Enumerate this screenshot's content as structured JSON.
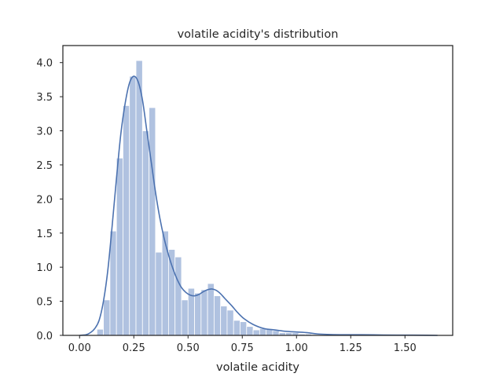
{
  "chart_data": {
    "type": "bar",
    "title": "volatile acidity's distribution",
    "xlabel": "volatile acidity",
    "ylabel": "",
    "xlim": [
      -0.077,
      1.72
    ],
    "ylim": [
      0,
      4.25
    ],
    "xticks": [
      0.0,
      0.25,
      0.5,
      0.75,
      1.0,
      1.25,
      1.5
    ],
    "xtick_labels": [
      "0.00",
      "0.25",
      "0.50",
      "0.75",
      "1.00",
      "1.25",
      "1.50"
    ],
    "yticks": [
      0.0,
      0.5,
      1.0,
      1.5,
      2.0,
      2.5,
      3.0,
      3.5,
      4.0
    ],
    "ytick_labels": [
      "0.0",
      "0.5",
      "1.0",
      "1.5",
      "2.0",
      "2.5",
      "3.0",
      "3.5",
      "4.0"
    ],
    "grid": false,
    "legend": "none",
    "histogram": {
      "bin_width": 0.03,
      "bin_starts": [
        0.08,
        0.11,
        0.14,
        0.17,
        0.2,
        0.23,
        0.26,
        0.29,
        0.32,
        0.35,
        0.38,
        0.41,
        0.44,
        0.47,
        0.5,
        0.53,
        0.56,
        0.59,
        0.62,
        0.65,
        0.68,
        0.71,
        0.74,
        0.77,
        0.8,
        0.83,
        0.86,
        0.89,
        0.92,
        0.95,
        0.98,
        1.01,
        1.04,
        1.07,
        1.1,
        1.13,
        1.16,
        1.19,
        1.22,
        1.25,
        1.28,
        1.31,
        1.34,
        1.37,
        1.4,
        1.43,
        1.46,
        1.49,
        1.52,
        1.55,
        1.58,
        1.61
      ],
      "values": [
        0.09,
        0.52,
        1.53,
        2.6,
        3.37,
        3.8,
        4.03,
        3.0,
        3.34,
        1.22,
        1.53,
        1.26,
        1.15,
        0.52,
        0.69,
        0.62,
        0.67,
        0.76,
        0.58,
        0.43,
        0.37,
        0.22,
        0.2,
        0.13,
        0.08,
        0.1,
        0.09,
        0.07,
        0.04,
        0.04,
        0.04,
        0.02,
        0.02,
        0.01,
        0.01,
        0.01,
        0.01,
        0.01,
        0.005,
        0.005,
        0.005,
        0.005,
        0.005,
        0.005,
        0.005,
        0.005,
        0.005,
        0.005,
        0.005,
        0.005,
        0.005,
        0.005
      ]
    },
    "kde": {
      "x": [
        0.0,
        0.03,
        0.05,
        0.07,
        0.09,
        0.11,
        0.13,
        0.15,
        0.17,
        0.19,
        0.21,
        0.23,
        0.25,
        0.27,
        0.29,
        0.31,
        0.33,
        0.35,
        0.37,
        0.39,
        0.41,
        0.43,
        0.45,
        0.47,
        0.49,
        0.51,
        0.53,
        0.55,
        0.57,
        0.59,
        0.61,
        0.63,
        0.65,
        0.67,
        0.7,
        0.73,
        0.76,
        0.8,
        0.85,
        0.9,
        0.95,
        1.0,
        1.05,
        1.1,
        1.2,
        1.3,
        1.4,
        1.5,
        1.6,
        1.65
      ],
      "y": [
        0.0,
        0.01,
        0.04,
        0.1,
        0.22,
        0.5,
        0.95,
        1.6,
        2.3,
        2.95,
        3.4,
        3.7,
        3.8,
        3.72,
        3.45,
        3.0,
        2.55,
        2.1,
        1.72,
        1.42,
        1.18,
        0.98,
        0.82,
        0.7,
        0.63,
        0.59,
        0.58,
        0.6,
        0.64,
        0.67,
        0.68,
        0.66,
        0.61,
        0.54,
        0.44,
        0.33,
        0.24,
        0.16,
        0.1,
        0.08,
        0.06,
        0.05,
        0.04,
        0.02,
        0.01,
        0.01,
        0.005,
        0.004,
        0.002,
        0.0
      ]
    },
    "colors": {
      "bars": "#b0c2e0",
      "kde_line": "#4c72b0",
      "frame": "#262626",
      "background": "#ffffff"
    }
  }
}
